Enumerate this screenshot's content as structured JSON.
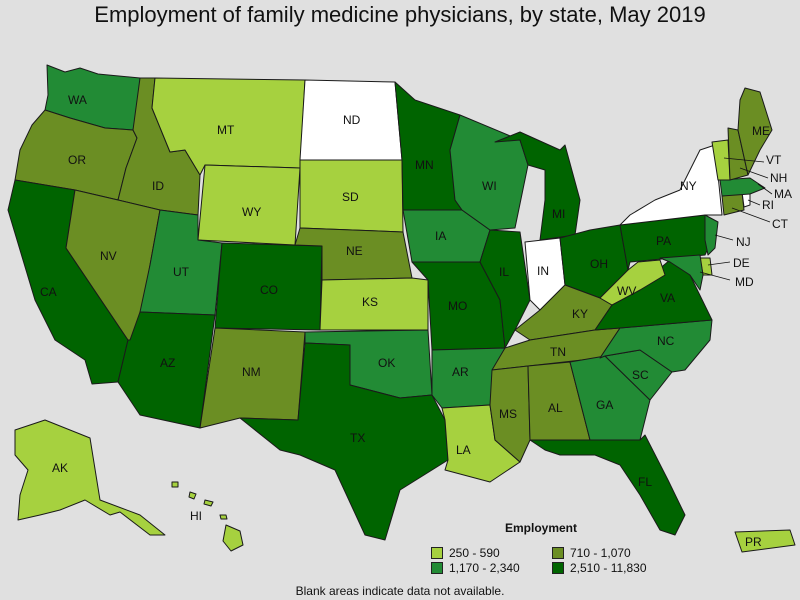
{
  "title": "Employment of family medicine physicians, by state, May 2019",
  "legend": {
    "title": "Employment",
    "bins": [
      {
        "label": "250 - 590",
        "color": "#a6d13f"
      },
      {
        "label": "710 - 1,070",
        "color": "#6b8e23"
      },
      {
        "label": "1,170 - 2,340",
        "color": "#228b35"
      },
      {
        "label": "2,510 - 11,830",
        "color": "#006400"
      }
    ],
    "na_color": "#ffffff"
  },
  "footnote": "Blank areas indicate data not available.",
  "states": [
    {
      "abbr": "WA",
      "bin": 2
    },
    {
      "abbr": "OR",
      "bin": 1
    },
    {
      "abbr": "CA",
      "bin": 3
    },
    {
      "abbr": "ID",
      "bin": 1
    },
    {
      "abbr": "NV",
      "bin": 1
    },
    {
      "abbr": "MT",
      "bin": 0
    },
    {
      "abbr": "WY",
      "bin": 0
    },
    {
      "abbr": "UT",
      "bin": 2
    },
    {
      "abbr": "AZ",
      "bin": 3
    },
    {
      "abbr": "CO",
      "bin": 3
    },
    {
      "abbr": "NM",
      "bin": 1
    },
    {
      "abbr": "ND",
      "bin": null
    },
    {
      "abbr": "SD",
      "bin": 0
    },
    {
      "abbr": "NE",
      "bin": 1
    },
    {
      "abbr": "KS",
      "bin": 0
    },
    {
      "abbr": "OK",
      "bin": 2
    },
    {
      "abbr": "TX",
      "bin": 3
    },
    {
      "abbr": "MN",
      "bin": 3
    },
    {
      "abbr": "IA",
      "bin": 2
    },
    {
      "abbr": "MO",
      "bin": 3
    },
    {
      "abbr": "AR",
      "bin": 2
    },
    {
      "abbr": "LA",
      "bin": 0
    },
    {
      "abbr": "WI",
      "bin": 2
    },
    {
      "abbr": "IL",
      "bin": 3
    },
    {
      "abbr": "MI",
      "bin": 3
    },
    {
      "abbr": "IN",
      "bin": null
    },
    {
      "abbr": "OH",
      "bin": 3
    },
    {
      "abbr": "KY",
      "bin": 1
    },
    {
      "abbr": "TN",
      "bin": 1
    },
    {
      "abbr": "MS",
      "bin": 1
    },
    {
      "abbr": "AL",
      "bin": 1
    },
    {
      "abbr": "GA",
      "bin": 2
    },
    {
      "abbr": "FL",
      "bin": 3
    },
    {
      "abbr": "SC",
      "bin": 2
    },
    {
      "abbr": "NC",
      "bin": 2
    },
    {
      "abbr": "VA",
      "bin": 3
    },
    {
      "abbr": "WV",
      "bin": 0
    },
    {
      "abbr": "PA",
      "bin": 3
    },
    {
      "abbr": "NY",
      "bin": null
    },
    {
      "abbr": "NJ",
      "bin": 2
    },
    {
      "abbr": "DE",
      "bin": 0
    },
    {
      "abbr": "MD",
      "bin": 2
    },
    {
      "abbr": "CT",
      "bin": 1
    },
    {
      "abbr": "RI",
      "bin": null
    },
    {
      "abbr": "MA",
      "bin": 2
    },
    {
      "abbr": "VT",
      "bin": 0
    },
    {
      "abbr": "NH",
      "bin": 1
    },
    {
      "abbr": "ME",
      "bin": 1
    },
    {
      "abbr": "AK",
      "bin": 0
    },
    {
      "abbr": "HI",
      "bin": 0
    },
    {
      "abbr": "PR",
      "bin": 0
    }
  ]
}
